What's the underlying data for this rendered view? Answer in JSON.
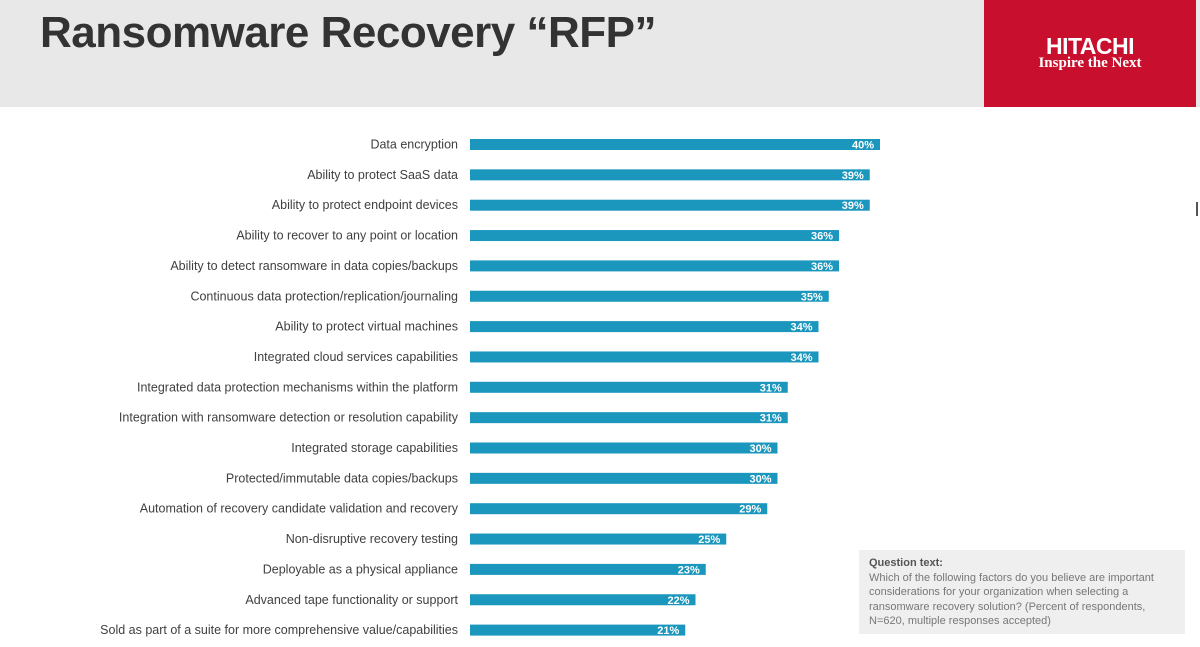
{
  "header": {
    "title": "Ransomware Recovery “RFP”",
    "logo_name": "HITACHI",
    "logo_tagline": "Inspire the Next"
  },
  "question": {
    "heading": "Question text:",
    "body": "Which of the following factors do you believe are important considerations for your organization when selecting a ransomware recovery solution? (Percent of respondents, N=620, multiple responses accepted)"
  },
  "colors": {
    "bar": "#1b97be",
    "logo_bg": "#c8102e",
    "header_bg": "#e8e8e8"
  },
  "chart_data": {
    "type": "bar",
    "orientation": "horizontal",
    "categories": [
      "Data encryption",
      "Ability to protect SaaS data",
      "Ability to protect endpoint devices",
      "Ability to recover to any point or location",
      "Ability to detect ransomware in data copies/backups",
      "Continuous data protection/replication/journaling",
      "Ability to protect virtual machines",
      "Integrated cloud services capabilities",
      "Integrated data protection mechanisms within the platform",
      "Integration with ransomware detection or resolution capability",
      "Integrated storage capabilities",
      "Protected/immutable data copies/backups",
      "Automation of recovery candidate validation and recovery",
      "Non-disruptive recovery testing",
      "Deployable as a physical appliance",
      "Advanced tape functionality or support",
      "Sold as part of a suite for more comprehensive value/capabilities"
    ],
    "values": [
      40,
      39,
      39,
      36,
      36,
      35,
      34,
      34,
      31,
      31,
      30,
      30,
      29,
      25,
      23,
      22,
      21
    ],
    "value_labels": [
      "40%",
      "39%",
      "39%",
      "36%",
      "36%",
      "35%",
      "34%",
      "34%",
      "31%",
      "31%",
      "30%",
      "30%",
      "29%",
      "25%",
      "23%",
      "22%",
      "21%"
    ],
    "xlim": [
      0,
      40
    ],
    "unit": "%",
    "grid": false
  }
}
